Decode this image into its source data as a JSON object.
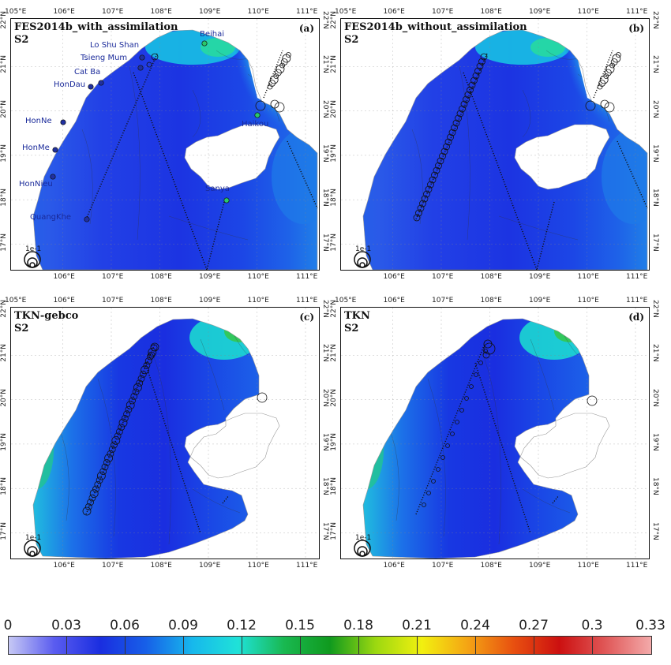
{
  "panels": [
    {
      "id": "a",
      "title": "FES2014b_with_assimilation",
      "subtitle": "S2",
      "label": "(a)",
      "stations": true
    },
    {
      "id": "b",
      "title": "FES2014b_without_assimilation",
      "subtitle": "S2",
      "label": "(b)",
      "stations": false
    },
    {
      "id": "c",
      "title": "TKN-gebco",
      "subtitle": "S2",
      "label": "(c)",
      "stations": false
    },
    {
      "id": "d",
      "title": "TKN",
      "subtitle": "S2",
      "label": "(d)",
      "stations": false
    }
  ],
  "axes": {
    "top_lon": [
      "105°E",
      "106°E",
      "107°E",
      "108°E",
      "109°E",
      "110°E",
      "111°E"
    ],
    "bottom_lon": [
      "106°E",
      "107°E",
      "108°E",
      "109°E",
      "110°E",
      "111°E"
    ],
    "left_lat": [
      "22°N",
      "21°N",
      "20°N",
      "19°N",
      "18°N",
      "17°N"
    ],
    "right_lat": [
      "22°N",
      "21°N",
      "20°N",
      "19°N",
      "18°N",
      "17°N"
    ]
  },
  "scale_label": "1e-1",
  "stations": [
    {
      "name": "Beihai"
    },
    {
      "name": "Lo Shu Shan"
    },
    {
      "name": "Tsieng Mum"
    },
    {
      "name": "Cat Ba"
    },
    {
      "name": "HonDau"
    },
    {
      "name": "HonNe"
    },
    {
      "name": "HonMe"
    },
    {
      "name": "HonNieu"
    },
    {
      "name": "Haikou"
    },
    {
      "name": "Sanya"
    },
    {
      "name": "QuangKhe"
    }
  ],
  "colorbar": {
    "ticks": [
      "0",
      "0.03",
      "0.06",
      "0.09",
      "0.12",
      "0.15",
      "0.18",
      "0.21",
      "0.24",
      "0.27",
      "0.3",
      "0.33"
    ],
    "min": 0,
    "max": 0.33,
    "colors": [
      "#c6c8f4",
      "#5a5cf0",
      "#1a2ee0",
      "#1760e8",
      "#17b8ec",
      "#1fe2d8",
      "#19b850",
      "#109a1e",
      "#9cd810",
      "#f2f010",
      "#f4a414",
      "#e85010",
      "#cc1010",
      "#e05858",
      "#f3aaaa"
    ]
  }
}
